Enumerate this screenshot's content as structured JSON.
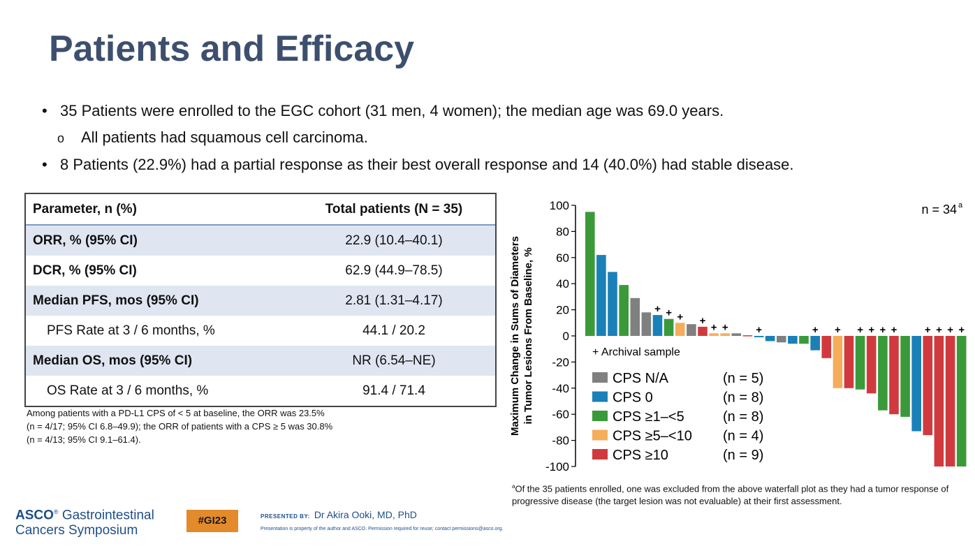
{
  "title": "Patients and Efficacy",
  "bullets": [
    "35 Patients were enrolled to the EGC cohort (31 men, 4 women); the median age was 69.0 years.",
    "All patients had squamous cell carcinoma.",
    "8 Patients (22.9%) had a partial response as their best overall response and 14 (40.0%) had stable disease."
  ],
  "bullet_markers": [
    "•",
    "o",
    "•"
  ],
  "table": {
    "headers": [
      "Parameter, n (%)",
      "Total patients (N = 35)"
    ],
    "rows": [
      {
        "label": "ORR, % (95% CI)",
        "value": "22.9 (10.4–40.1)"
      },
      {
        "label": "DCR, % (95% CI)",
        "value": "62.9 (44.9–78.5)"
      },
      {
        "label": "Median PFS, mos (95% CI)",
        "value": "2.81 (1.31–4.17)"
      },
      {
        "label": "PFS Rate at 3 / 6 months, %",
        "value": "44.1 / 20.2"
      },
      {
        "label": "Median OS, mos (95% CI)",
        "value": "NR (6.54–NE)"
      },
      {
        "label": "OS Rate at 3 / 6 months, %",
        "value": "91.4 / 71.4"
      }
    ]
  },
  "table_note": [
    "Among patients with a PD-L1 CPS of < 5 at baseline, the ORR was 23.5%",
    "(n = 4/17; 95% CI 6.8–49.9); the ORR of patients with a CPS ≥ 5 was 30.8%",
    "(n = 4/13; 95% CI 9.1–61.4)."
  ],
  "chart_data": {
    "type": "bar",
    "n_label": "n = 34",
    "n_label_sup": "a",
    "ylabel": [
      "Maximum Change in Sums of Diameters",
      "in Tumor Lesions From Baseline, %"
    ],
    "ylim": [
      -100,
      100
    ],
    "yticks": [
      100,
      80,
      60,
      40,
      20,
      0,
      -20,
      -40,
      -60,
      -80,
      -100
    ],
    "archival_marker": "+",
    "archival_legend": "+ Archival sample",
    "categories": [
      "CPS N/A",
      "CPS 0",
      "CPS ≥1–<5",
      "CPS ≥5–<10",
      "CPS ≥10"
    ],
    "category_counts": [
      "(n = 5)",
      "(n = 8)",
      "(n = 8)",
      "(n = 4)",
      "(n = 9)"
    ],
    "colors": {
      "CPS N/A": "#808080",
      "CPS 0": "#1a80b8",
      "CPS ≥1–<5": "#3a9a3a",
      "CPS ≥5–<10": "#f5ad5a",
      "CPS ≥10": "#d03a3e"
    },
    "bars": [
      {
        "value": 95,
        "group": 2,
        "archival": false
      },
      {
        "value": 62,
        "group": 1,
        "archival": false
      },
      {
        "value": 49,
        "group": 1,
        "archival": false
      },
      {
        "value": 39,
        "group": 2,
        "archival": false
      },
      {
        "value": 29,
        "group": 0,
        "archival": false
      },
      {
        "value": 18,
        "group": 0,
        "archival": false
      },
      {
        "value": 16,
        "group": 1,
        "archival": true
      },
      {
        "value": 13,
        "group": 2,
        "archival": true
      },
      {
        "value": 10,
        "group": 3,
        "archival": true
      },
      {
        "value": 9,
        "group": 0,
        "archival": false
      },
      {
        "value": 7,
        "group": 4,
        "archival": true
      },
      {
        "value": 2,
        "group": 3,
        "archival": true
      },
      {
        "value": 2,
        "group": 3,
        "archival": true
      },
      {
        "value": 2,
        "group": 0,
        "archival": false
      },
      {
        "value": 0.5,
        "group": 4,
        "archival": false
      },
      {
        "value": -1,
        "group": 1,
        "archival": true
      },
      {
        "value": -4,
        "group": 1,
        "archival": false
      },
      {
        "value": -5,
        "group": 0,
        "archival": false
      },
      {
        "value": -6,
        "group": 1,
        "archival": false
      },
      {
        "value": -6,
        "group": 2,
        "archival": false
      },
      {
        "value": -11,
        "group": 1,
        "archival": true
      },
      {
        "value": -17,
        "group": 4,
        "archival": false
      },
      {
        "value": -40,
        "group": 3,
        "archival": true
      },
      {
        "value": -40,
        "group": 4,
        "archival": false
      },
      {
        "value": -41,
        "group": 2,
        "archival": true
      },
      {
        "value": -44,
        "group": 4,
        "archival": true
      },
      {
        "value": -57,
        "group": 2,
        "archival": true
      },
      {
        "value": -60,
        "group": 4,
        "archival": true
      },
      {
        "value": -62,
        "group": 2,
        "archival": false
      },
      {
        "value": -73,
        "group": 1,
        "archival": false
      },
      {
        "value": -76,
        "group": 4,
        "archival": true
      },
      {
        "value": -100,
        "group": 4,
        "archival": true
      },
      {
        "value": -100,
        "group": 4,
        "archival": true
      },
      {
        "value": -100,
        "group": 2,
        "archival": true
      }
    ]
  },
  "footnote_sup": "a",
  "footnote": "Of the 35 patients enrolled, one was excluded from the above waterfall plot as they had a tumor response of progressive disease (the target lesion was not evaluable) at their first assessment.",
  "footer": {
    "asco_word": "ASCO",
    "asco_rest_1": "Gastrointestinal",
    "asco_line_2": "Cancers Symposium",
    "registered": "®",
    "hashtag": "#GI23",
    "presented_by_label": "PRESENTED BY:",
    "presenter": "Dr Akira Ooki, MD, PhD",
    "property_note": "Presentation is property of the author and ASCO. Permission required for reuse; contact permissions@asco.org."
  }
}
